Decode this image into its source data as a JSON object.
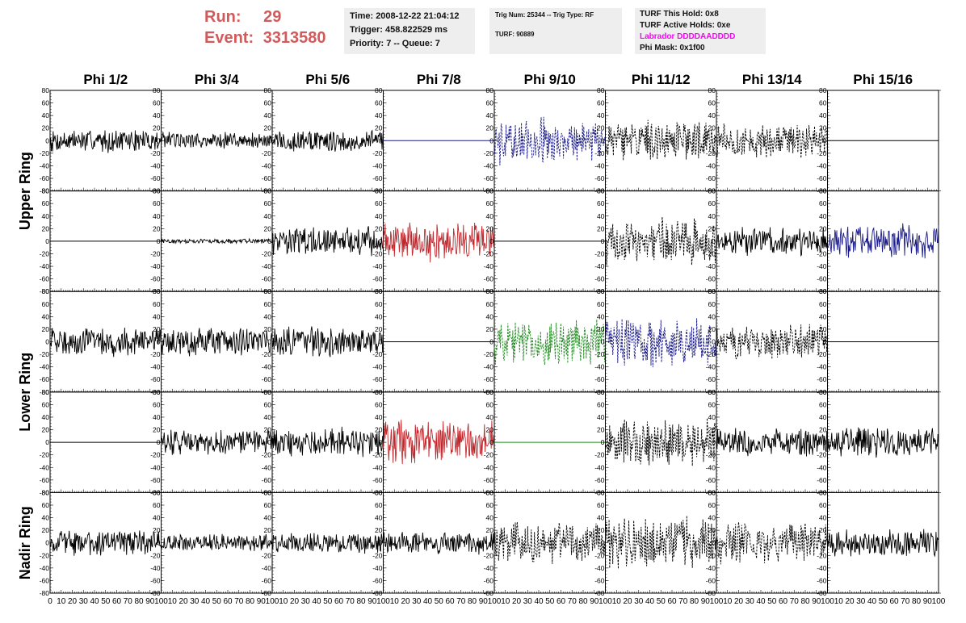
{
  "header": {
    "run_label": "Run:",
    "run_value": "29",
    "event_label": "Event:",
    "event_value": "3313580",
    "time_line": "Time: 2008-12-22 21:04:12",
    "trigger_line": "Trigger: 458.822529 ms",
    "priority_line": "Priority: 7 -- Queue: 7",
    "trig_line": "Trig Num: 25344 -- Trig Type: RF",
    "turf_line": "TURF: 90889",
    "turf_hold_line": "TURF This Hold: 0x8",
    "turf_active_line": "TURF Active Holds: 0xe",
    "labrador_line": "Labrador DDDDAADDDD",
    "phi_mask_line": "Phi Mask: 0x1f00",
    "labrador_color": "#ff00ff"
  },
  "chart_data": {
    "type": "line",
    "columns": [
      "Phi 1/2",
      "Phi 3/4",
      "Phi 5/6",
      "Phi 7/8",
      "Phi 9/10",
      "Phi 11/12",
      "Phi 13/14",
      "Phi 15/16"
    ],
    "ring_labels": [
      "Upper Ring",
      "Lower Ring",
      "Nadir Ring"
    ],
    "rows": 5,
    "xlim": [
      0,
      100
    ],
    "ylim": [
      -80,
      80
    ],
    "x_tick_labels": [
      "0",
      "10",
      "20",
      "30",
      "40",
      "50",
      "60",
      "70",
      "80",
      "90",
      "100"
    ],
    "y_tick_labels": [
      "80",
      "60",
      "40",
      "20",
      "0",
      "-20",
      "-40",
      "-60",
      "-80"
    ],
    "colors": {
      "black": "#000000",
      "blue": "#1a1a8a",
      "red": "#c0282d",
      "green": "#1f8a1f"
    },
    "traces": [
      [
        {
          "amp": 20,
          "color": "black",
          "dash": false
        },
        {
          "amp": 15,
          "color": "black",
          "dash": false
        },
        {
          "amp": 20,
          "color": "black",
          "dash": false
        },
        {
          "amp": 0,
          "color": "blue",
          "dash": false
        },
        {
          "amp": 40,
          "color": "blue",
          "dash": true
        },
        {
          "amp": 35,
          "color": "black",
          "dash": true
        },
        {
          "amp": 30,
          "color": "black",
          "dash": true
        },
        {
          "amp": 0,
          "color": "black",
          "dash": false
        }
      ],
      [
        {
          "amp": 0,
          "color": "black",
          "dash": false
        },
        {
          "amp": 4,
          "color": "black",
          "dash": false
        },
        {
          "amp": 25,
          "color": "black",
          "dash": false
        },
        {
          "amp": 35,
          "color": "red",
          "dash": false
        },
        {
          "amp": 0,
          "color": "black",
          "dash": false
        },
        {
          "amp": 40,
          "color": "black",
          "dash": true
        },
        {
          "amp": 25,
          "color": "black",
          "dash": false
        },
        {
          "amp": 30,
          "color": "blue",
          "dash": false
        }
      ],
      [
        {
          "amp": 25,
          "color": "black",
          "dash": false
        },
        {
          "amp": 25,
          "color": "black",
          "dash": false
        },
        {
          "amp": 25,
          "color": "black",
          "dash": false
        },
        {
          "amp": 0,
          "color": "black",
          "dash": false
        },
        {
          "amp": 40,
          "color": "green",
          "dash": true
        },
        {
          "amp": 45,
          "color": "blue",
          "dash": true
        },
        {
          "amp": 30,
          "color": "black",
          "dash": true
        },
        {
          "amp": 0,
          "color": "black",
          "dash": false
        }
      ],
      [
        {
          "amp": 0,
          "color": "black",
          "dash": false
        },
        {
          "amp": 22,
          "color": "black",
          "dash": false
        },
        {
          "amp": 25,
          "color": "black",
          "dash": false
        },
        {
          "amp": 38,
          "color": "red",
          "dash": false
        },
        {
          "amp": 0,
          "color": "green",
          "dash": false
        },
        {
          "amp": 40,
          "color": "black",
          "dash": true
        },
        {
          "amp": 25,
          "color": "black",
          "dash": false
        },
        {
          "amp": 25,
          "color": "black",
          "dash": false
        }
      ],
      [
        {
          "amp": 22,
          "color": "black",
          "dash": false
        },
        {
          "amp": 15,
          "color": "black",
          "dash": false
        },
        {
          "amp": 18,
          "color": "black",
          "dash": false
        },
        {
          "amp": 20,
          "color": "black",
          "dash": false
        },
        {
          "amp": 35,
          "color": "black",
          "dash": true
        },
        {
          "amp": 45,
          "color": "black",
          "dash": true
        },
        {
          "amp": 35,
          "color": "black",
          "dash": true
        },
        {
          "amp": 25,
          "color": "black",
          "dash": false
        }
      ]
    ]
  }
}
